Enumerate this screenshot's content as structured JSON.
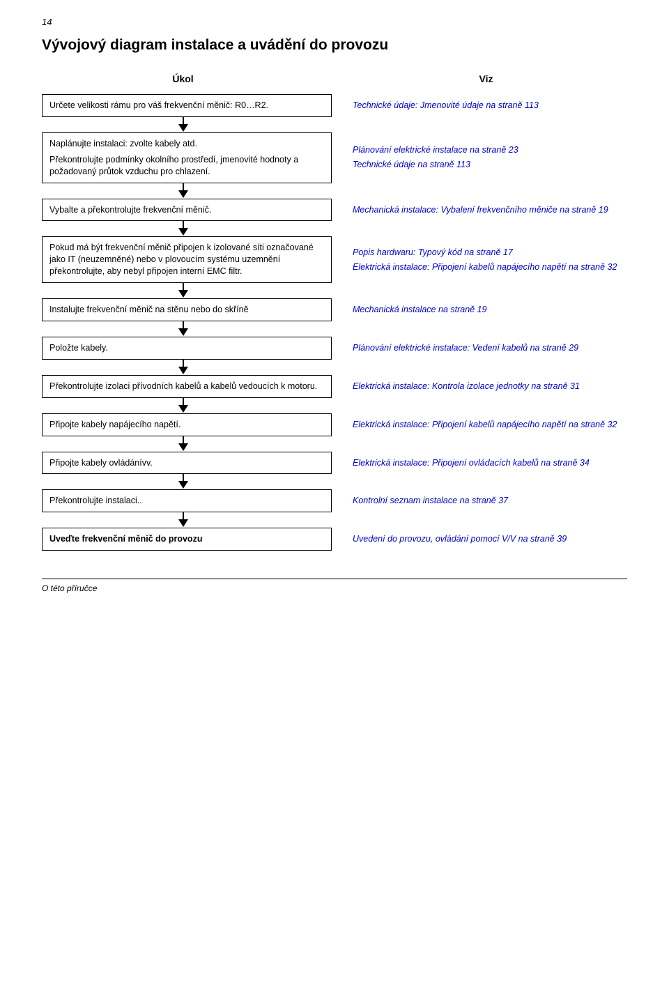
{
  "page_number": "14",
  "title": "Vývojový diagram instalace a uvádění do provozu",
  "col_left_header": "Úkol",
  "col_right_header": "Viz",
  "footer": "O této příručce",
  "link_color": "#0000cc",
  "text_color": "#000000",
  "background_color": "#ffffff",
  "border_color": "#000000",
  "font_sizes": {
    "page_num": 13,
    "title": 21,
    "header": 14,
    "body": 12.5,
    "footer": 12
  },
  "rows": [
    {
      "task": "Určete velikosti rámu pro váš frekvenční měnič: R0…R2.",
      "refs": [
        {
          "blue": "Technické údaje",
          "after": ": ",
          "blue2": "Jmenovité údaje",
          "tail": " na straně ",
          "page": "113"
        }
      ]
    },
    {
      "task_segments": [
        "Naplánujte instalaci: zvolte kabely atd.",
        "Překontrolujte podmínky okolního prostředí, jmenovité hodnoty a požadovaný průtok vzduchu pro chlazení."
      ],
      "refs": [
        {
          "blue": "Plánování elektrické instalace",
          "tail": " na straně ",
          "page": "23"
        },
        {
          "blue": "Technické údaje",
          "tail": " na straně ",
          "page": "113"
        }
      ]
    },
    {
      "task": "Vybalte a překontrolujte frekvenční měnič.",
      "refs": [
        {
          "blue": "Mechanická instalace",
          "after": ": ",
          "blue2": "Vybalení frekvenčního měniče",
          "tail": " na straně ",
          "page": "19"
        }
      ]
    },
    {
      "task": "Pokud má být frekvenční měnič připojen k izolované síti označované jako IT (neuzemněné) nebo v plovoucím systému uzemnění překontrolujte, aby nebyl připojen interní EMC filtr.",
      "refs": [
        {
          "blue": "Popis hardwaru",
          "after": ": ",
          "blue2": "Typový kód",
          "tail": " na straně ",
          "page": "17"
        },
        {
          "blue": "Elektrická instalace",
          "after": ": ",
          "blue2": "Připojení kabelů napájecího napětí",
          "tail": " na straně ",
          "page": "32"
        }
      ]
    },
    {
      "task": "Instalujte frekvenční měnič na stěnu nebo do skříně",
      "refs": [
        {
          "blue": "Mechanická instalace",
          "tail": " na straně ",
          "page": "19"
        }
      ]
    },
    {
      "task": "Položte kabely.",
      "refs": [
        {
          "blue": "Plánování elektrické instalace",
          "after": ": ",
          "blue2": "Vedení kabelů",
          "tail": " na straně ",
          "page": "29"
        }
      ]
    },
    {
      "task": "Překontrolujte izolaci přívodních kabelů a kabelů vedoucích k motoru.",
      "refs": [
        {
          "blue": "Elektrická instalace",
          "after": ": ",
          "blue2": "Kontrola izolace jednotky",
          "tail": " na straně ",
          "page": "31"
        }
      ]
    },
    {
      "task": "Připojte kabely napájecího napětí.",
      "refs": [
        {
          "blue": "Elektrická instalace",
          "after": ": ",
          "blue2": "Připojení kabelů napájecího napětí",
          "tail": " na straně ",
          "page": "32"
        }
      ]
    },
    {
      "task": "Připojte kabely ovládánívv.",
      "refs": [
        {
          "blue": "Elektrická instalace",
          "after": ": ",
          "blue2": "Připojení ovládacích kabelů",
          "tail": " na straně ",
          "page": "34"
        }
      ]
    },
    {
      "task": "Překontrolujte instalaci..",
      "refs": [
        {
          "blue": "Kontrolní seznam instalace",
          "tail": " na straně ",
          "page": "37"
        }
      ]
    },
    {
      "task": "Uveďte frekvenční měnič do provozu",
      "task_bold": true,
      "refs": [
        {
          "blue": "Uvedení do provozu, ovládání pomocí V/V",
          "tail": " na straně ",
          "page": "39"
        }
      ]
    }
  ]
}
